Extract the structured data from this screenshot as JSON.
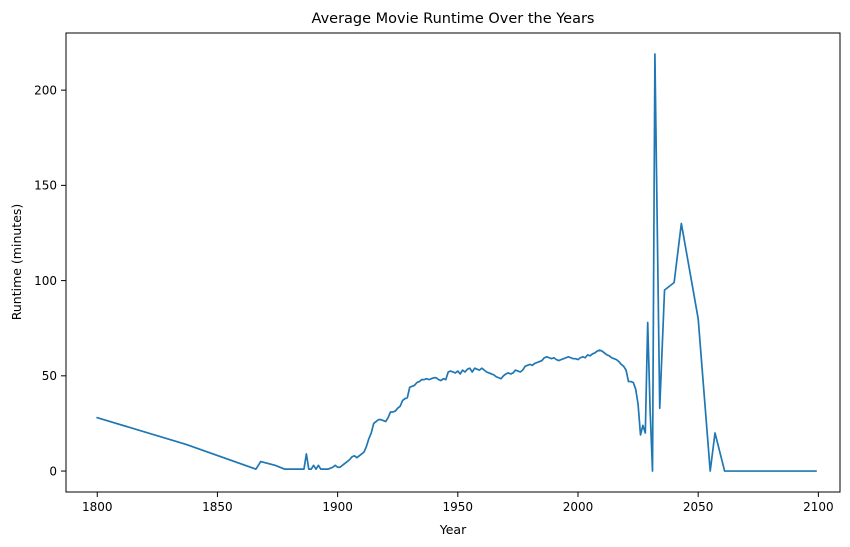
{
  "chart_data": {
    "type": "line",
    "title": "Average Movie Runtime Over the Years",
    "xlabel": "Year",
    "ylabel": "Runtime (minutes)",
    "xlim": [
      1787,
      2109
    ],
    "ylim": [
      -11,
      230
    ],
    "xticks": [
      1800,
      1850,
      1900,
      1950,
      2000,
      2050,
      2100
    ],
    "yticks": [
      0,
      50,
      100,
      150,
      200
    ],
    "grid": false,
    "line_color": "#1f77b4",
    "series": [
      {
        "x": [
          1800,
          1837,
          1866,
          1868,
          1874,
          1878,
          1886,
          1887,
          1888,
          1889,
          1890,
          1891,
          1892,
          1893,
          1894,
          1895,
          1896,
          1897,
          1898,
          1899,
          1900,
          1901,
          1902,
          1903,
          1904,
          1905,
          1906,
          1907,
          1908,
          1909,
          1910,
          1911,
          1912,
          1913,
          1914,
          1915,
          1916,
          1917,
          1918,
          1919,
          1920,
          1921,
          1922,
          1923,
          1924,
          1925,
          1926,
          1927,
          1928,
          1929,
          1930,
          1931,
          1932,
          1933,
          1934,
          1935,
          1936,
          1937,
          1938,
          1939,
          1940,
          1941,
          1942,
          1943,
          1944,
          1945,
          1946,
          1947,
          1948,
          1949,
          1950,
          1951,
          1952,
          1953,
          1954,
          1955,
          1956,
          1957,
          1958,
          1959,
          1960,
          1961,
          1962,
          1963,
          1964,
          1965,
          1966,
          1967,
          1968,
          1969,
          1970,
          1971,
          1972,
          1973,
          1974,
          1975,
          1976,
          1977,
          1978,
          1979,
          1980,
          1981,
          1982,
          1983,
          1984,
          1985,
          1986,
          1987,
          1988,
          1989,
          1990,
          1991,
          1992,
          1993,
          1994,
          1995,
          1996,
          1997,
          1998,
          1999,
          2000,
          2001,
          2002,
          2003,
          2004,
          2005,
          2006,
          2007,
          2008,
          2009,
          2010,
          2011,
          2012,
          2013,
          2014,
          2015,
          2016,
          2017,
          2018,
          2019,
          2020,
          2021,
          2022,
          2023,
          2024,
          2025,
          2026,
          2027,
          2028,
          2029,
          2030,
          2031,
          2032,
          2034,
          2036,
          2040,
          2043,
          2050,
          2055,
          2057,
          2061,
          2099
        ],
        "values": [
          28,
          14,
          1,
          5,
          3,
          1,
          1,
          9,
          1,
          1,
          3,
          1,
          3,
          1,
          1,
          1,
          1,
          1.5,
          2,
          3,
          2,
          2,
          3,
          4,
          5,
          6,
          7.5,
          8,
          7,
          8,
          9,
          10,
          13,
          17,
          20,
          25,
          26,
          27,
          27,
          26.5,
          26,
          28,
          31,
          31,
          31.5,
          33,
          34,
          37,
          38,
          38.5,
          44,
          44.5,
          45,
          46.5,
          47,
          48,
          48,
          48.5,
          48,
          48.5,
          49,
          49,
          48,
          47.5,
          48.5,
          48,
          52,
          52.5,
          52,
          51.5,
          52.5,
          51,
          53,
          52,
          53.5,
          54,
          52,
          54,
          53.5,
          53,
          54,
          53,
          52,
          51.5,
          51,
          50.5,
          49.5,
          49,
          48.5,
          50,
          51,
          51.5,
          51,
          51.5,
          53,
          52.5,
          52,
          53,
          55,
          55.5,
          56,
          55.5,
          56.5,
          57,
          57.5,
          58,
          59.5,
          60,
          59.5,
          59,
          59.5,
          58.5,
          58,
          58.5,
          59,
          59.5,
          60,
          59.5,
          59,
          59,
          58.5,
          59.5,
          60,
          59.5,
          61,
          60.5,
          61.5,
          62,
          63,
          63.5,
          63,
          62,
          61,
          60.5,
          59.5,
          59,
          58.5,
          57.5,
          56,
          55,
          53,
          47,
          47,
          46.5,
          43,
          35,
          19,
          24,
          20,
          78,
          32,
          0,
          219,
          33,
          95,
          99,
          130,
          80,
          0,
          20,
          0,
          0
        ]
      }
    ]
  }
}
